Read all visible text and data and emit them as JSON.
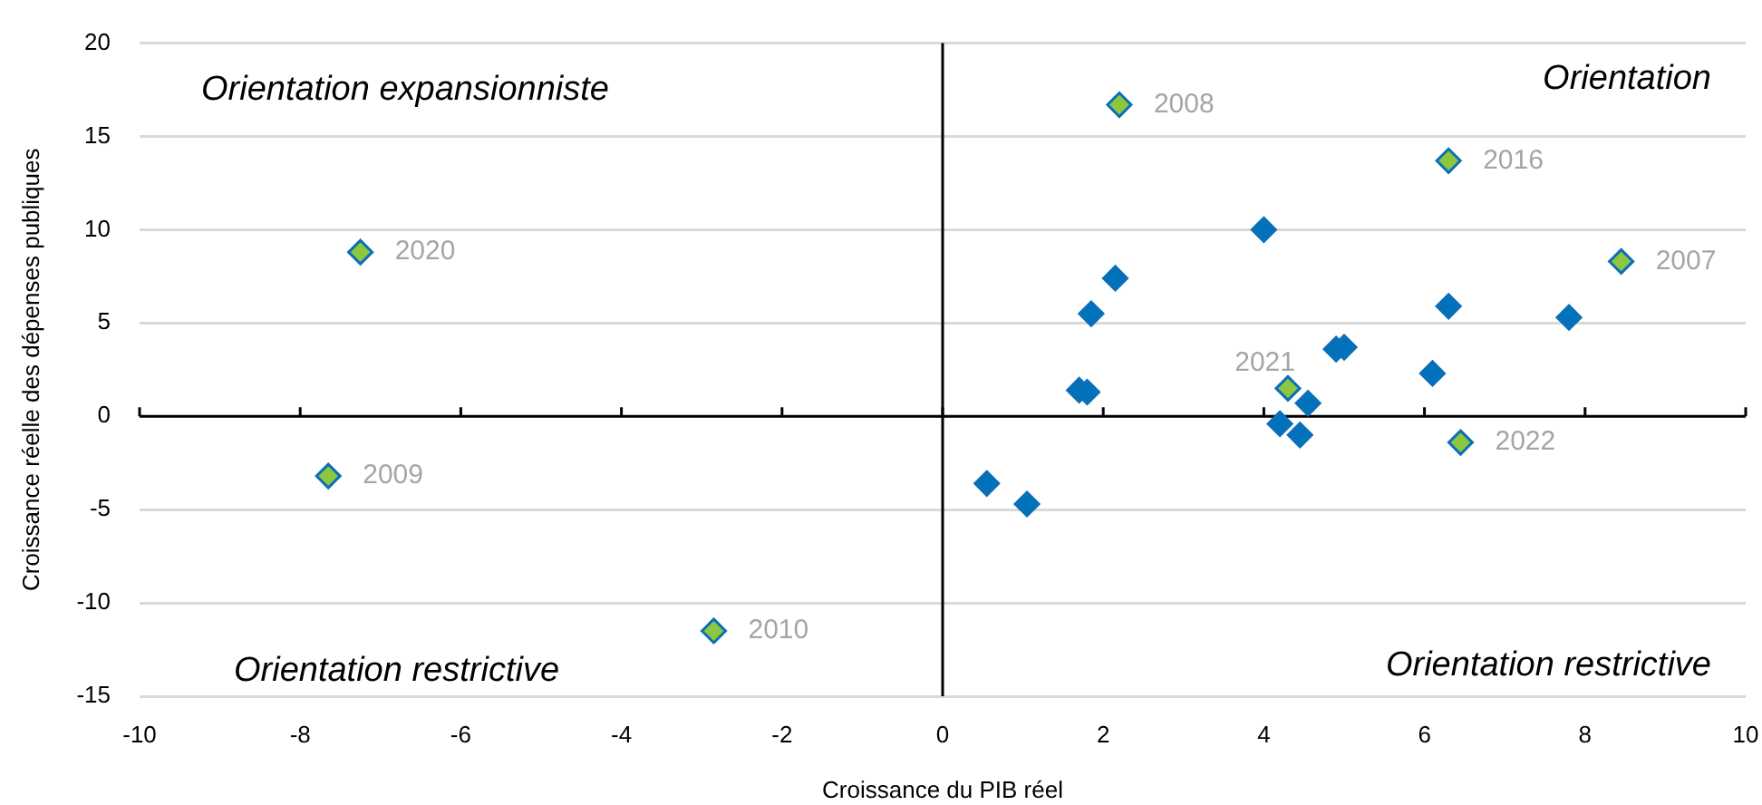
{
  "chart_data": {
    "type": "scatter",
    "xlabel": "Croissance du PIB réel",
    "ylabel": "Croissance réelle des dépenses publiques",
    "xlim": [
      -10,
      10
    ],
    "xticks": [
      -10,
      -8,
      -6,
      -4,
      -2,
      0,
      2,
      4,
      6,
      8,
      10
    ],
    "ylim": [
      -15,
      20
    ],
    "yticks": [
      -15,
      -10,
      -5,
      0,
      5,
      10,
      15,
      20
    ],
    "grid": "y",
    "legend": false,
    "marker": "diamond",
    "ref_lines": [
      {
        "axis": "x",
        "value": 0,
        "color": "#000000"
      }
    ],
    "series": [
      {
        "color": "#0072bc",
        "x": [
          4.0,
          2.15,
          1.85,
          6.3,
          7.8,
          4.9,
          5.0,
          6.1,
          1.7,
          1.8,
          4.55,
          4.2,
          4.45,
          0.55,
          1.05
        ],
        "values": [
          10.0,
          7.4,
          5.5,
          5.9,
          5.3,
          3.6,
          3.7,
          2.3,
          1.4,
          1.3,
          0.7,
          -0.4,
          -1.0,
          -3.6,
          -4.7
        ]
      },
      {
        "color": "#8dc63f",
        "x": [
          2.2,
          6.3,
          8.45,
          -7.25,
          -7.65,
          -2.85,
          4.3,
          6.45
        ],
        "values": [
          16.7,
          13.7,
          8.3,
          8.8,
          -3.2,
          -11.5,
          1.5,
          -1.4
        ]
      }
    ],
    "annotations": [
      "Orientation expansionniste",
      "Orientation",
      "Orientation restrictive",
      "Orientation restrictive",
      {
        "text": "2008",
        "x": 2.2,
        "y": 16.7
      },
      {
        "text": "2016",
        "x": 6.3,
        "y": 13.7
      },
      {
        "text": "2007",
        "x": 8.45,
        "y": 8.3
      },
      {
        "text": "2020",
        "x": -7.25,
        "y": 8.8
      },
      {
        "text": "2009",
        "x": -7.65,
        "y": -3.2
      },
      {
        "text": "2010",
        "x": -2.85,
        "y": -11.5
      },
      {
        "text": "2021",
        "x": 4.3,
        "y": 1.5
      },
      {
        "text": "2022",
        "x": 6.45,
        "y": -1.4
      }
    ]
  }
}
